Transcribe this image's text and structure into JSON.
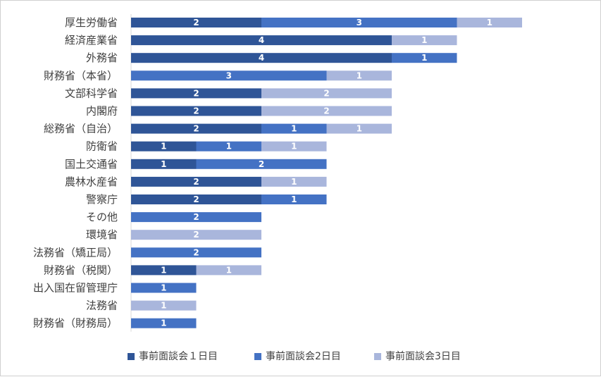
{
  "chart_data": {
    "type": "bar",
    "orientation": "horizontal",
    "stacked": true,
    "categories": [
      "厚生労働省",
      "経済産業省",
      "外務省",
      "財務省（本省）",
      "文部科学省",
      "内閣府",
      "総務省（自治）",
      "防衛省",
      "国土交通省",
      "農林水産省",
      "警察庁",
      "その他",
      "環境省",
      "法務省（矯正局）",
      "財務省（税関）",
      "出入国在留管理庁",
      "法務省",
      "財務省（財務局）"
    ],
    "series": [
      {
        "name": "事前面談会１日目",
        "color": "#2f5597",
        "values": [
          2,
          4,
          4,
          0,
          2,
          2,
          2,
          1,
          1,
          2,
          2,
          0,
          0,
          0,
          1,
          0,
          0,
          0
        ]
      },
      {
        "name": "事前面談会2日目",
        "color": "#4472c4",
        "values": [
          3,
          0,
          1,
          3,
          0,
          0,
          1,
          1,
          2,
          0,
          1,
          2,
          0,
          2,
          0,
          1,
          0,
          1
        ]
      },
      {
        "name": "事前面談会3日目",
        "color": "#a9b6dc",
        "values": [
          1,
          1,
          0,
          1,
          2,
          2,
          1,
          1,
          0,
          1,
          0,
          0,
          2,
          0,
          1,
          0,
          1,
          0
        ]
      }
    ],
    "xlim": [
      0,
      6
    ],
    "grid": false,
    "legend_position": "bottom"
  }
}
